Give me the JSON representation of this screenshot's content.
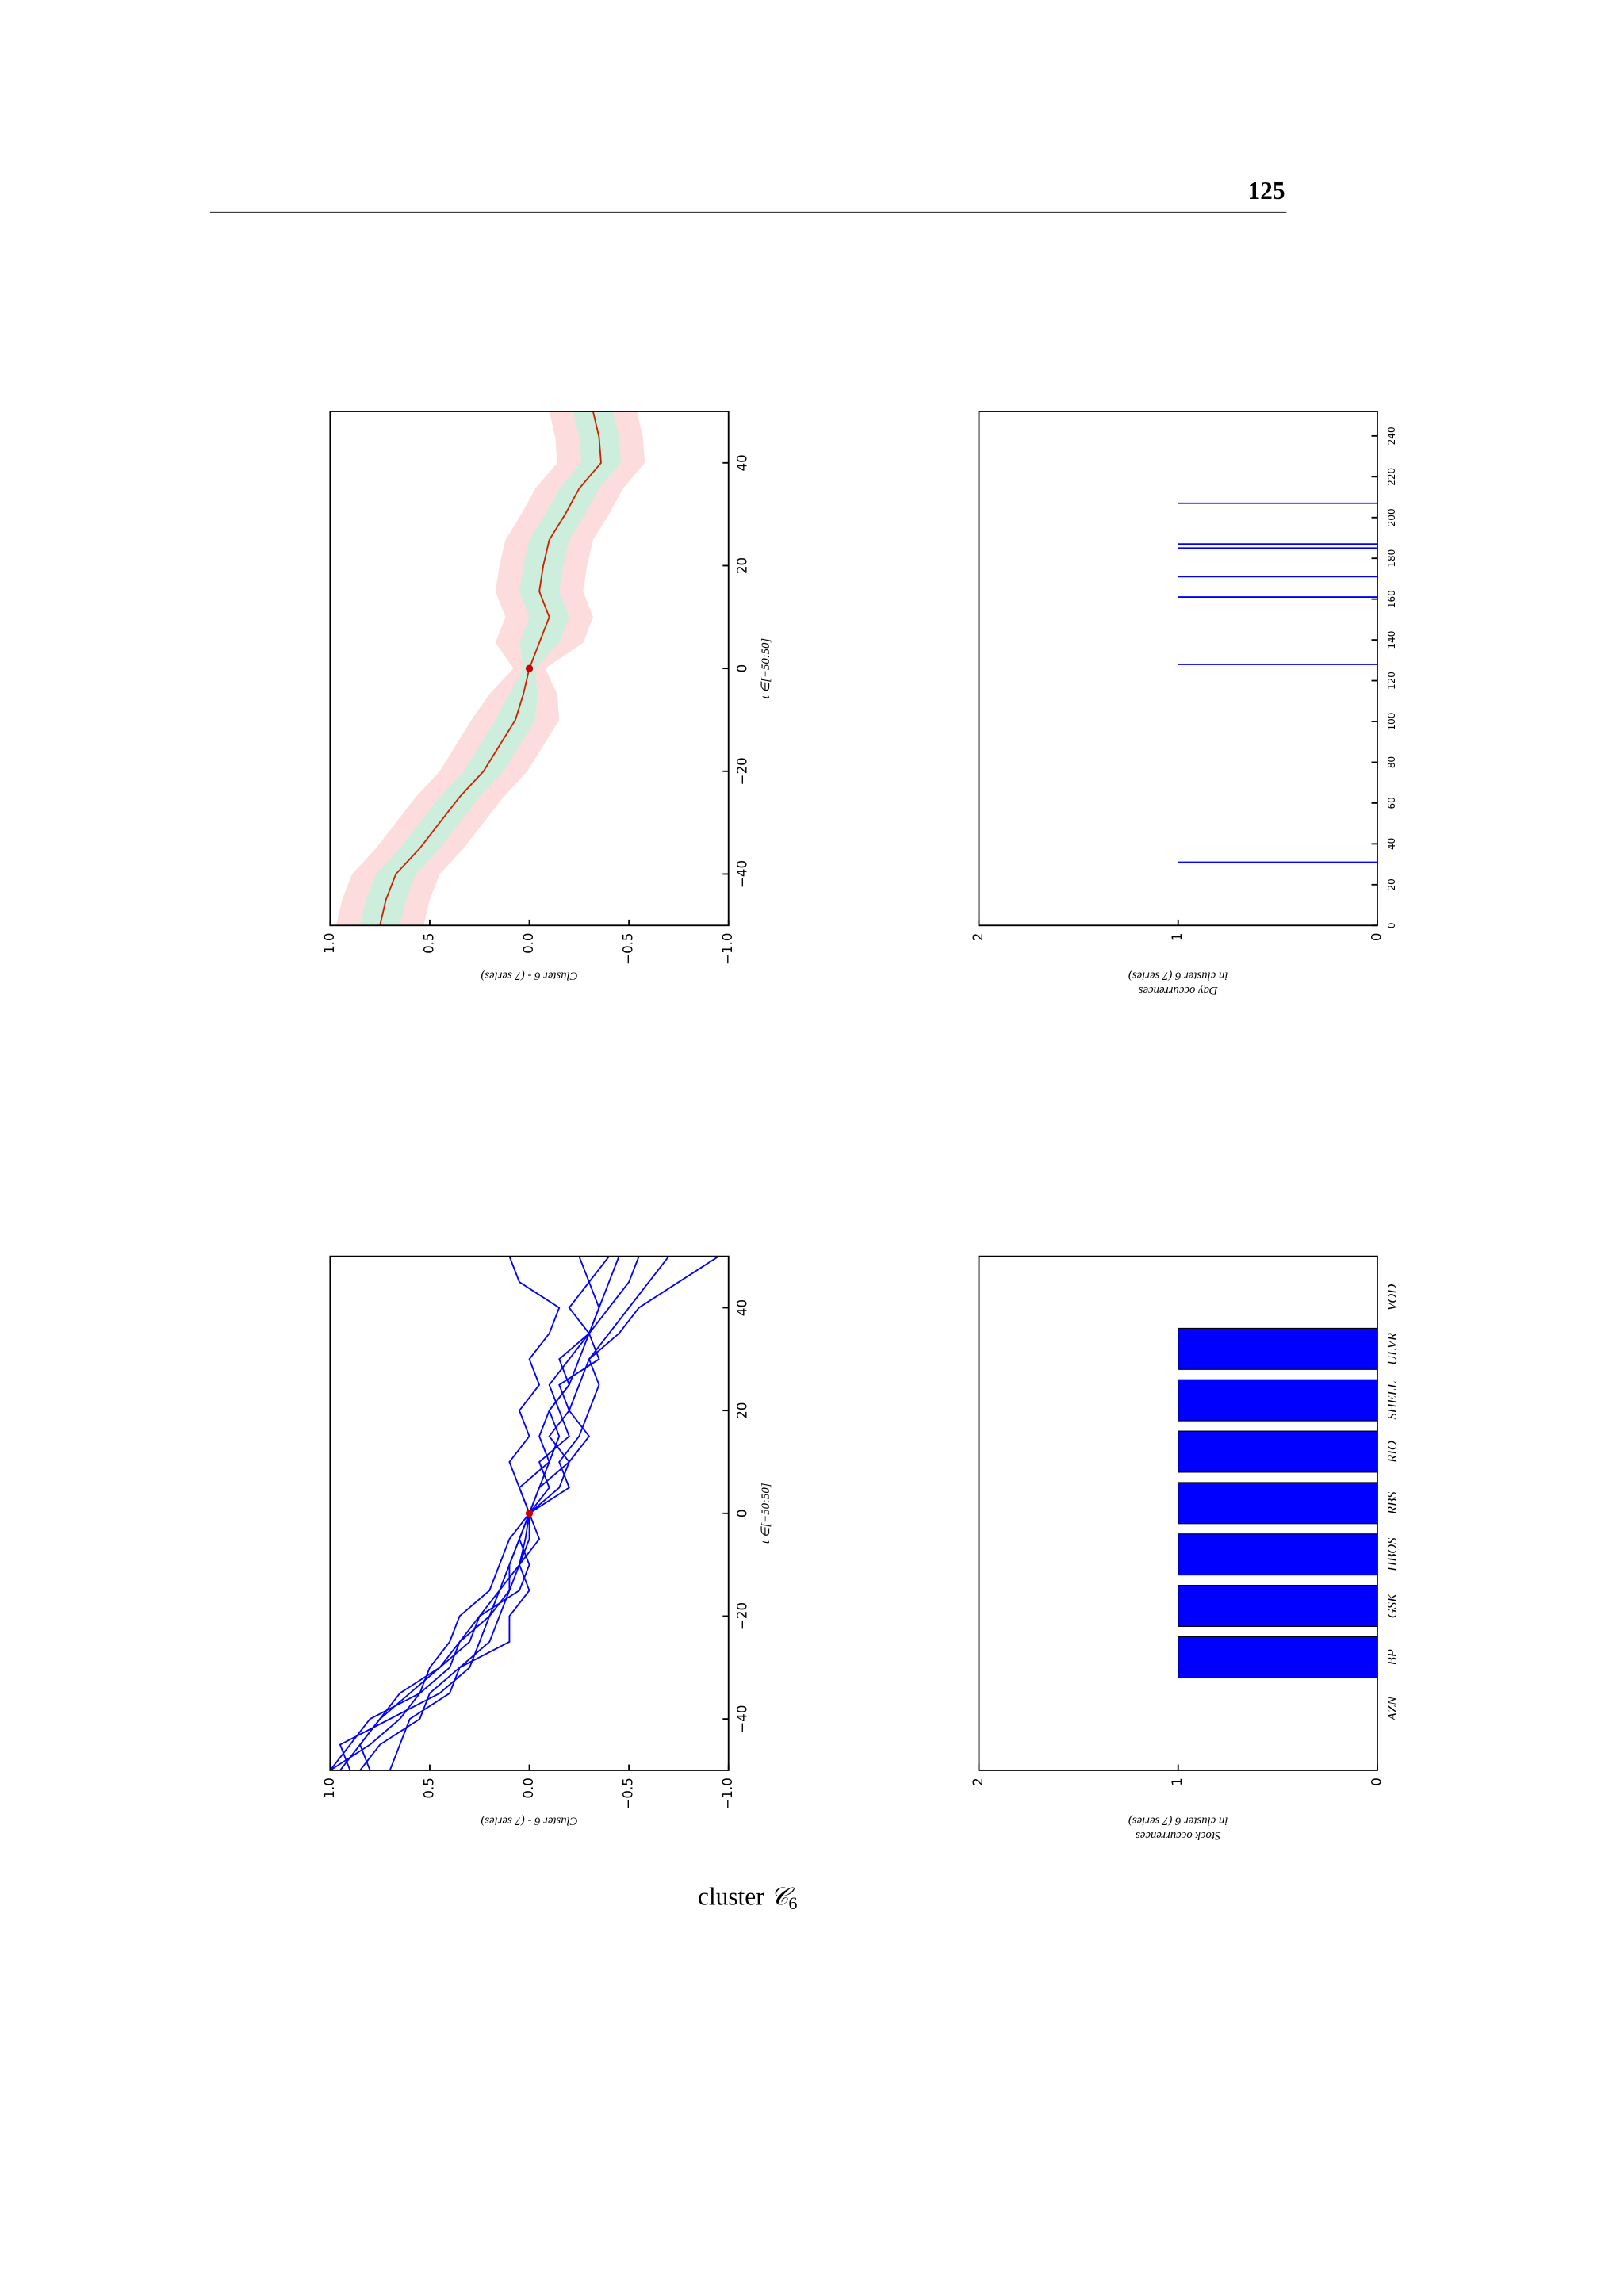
{
  "header": {
    "page_number": "125"
  },
  "caption": {
    "text": "cluster",
    "symbol": "𝒞",
    "subscript": "6"
  },
  "chart_data": [
    {
      "type": "line",
      "x": [
        -50,
        -45,
        -40,
        -35,
        -30,
        -25,
        -20,
        -15,
        -10,
        -5,
        0,
        5,
        10,
        15,
        20,
        25,
        30,
        35,
        40,
        45,
        50
      ],
      "series": [
        {
          "color": "#cc2200",
          "values": [
            0.75,
            0.72,
            0.67,
            0.55,
            0.45,
            0.35,
            0.23,
            0.15,
            0.07,
            0.03,
            0,
            -0.05,
            -0.1,
            -0.05,
            -0.07,
            -0.1,
            -0.18,
            -0.25,
            -0.36,
            -0.35,
            -0.32
          ]
        }
      ],
      "bands": [
        {
          "color": "#fcdcdc",
          "upper": [
            0.97,
            0.94,
            0.89,
            0.77,
            0.67,
            0.57,
            0.45,
            0.37,
            0.29,
            0.2,
            0.08,
            0.17,
            0.12,
            0.17,
            0.15,
            0.12,
            0.04,
            -0.03,
            -0.14,
            -0.13,
            -0.1
          ],
          "lower": [
            0.53,
            0.5,
            0.45,
            0.33,
            0.23,
            0.13,
            0.01,
            -0.07,
            -0.15,
            -0.14,
            -0.08,
            -0.27,
            -0.32,
            -0.27,
            -0.29,
            -0.32,
            -0.4,
            -0.47,
            -0.58,
            -0.57,
            -0.54
          ]
        },
        {
          "color": "#cdeedd",
          "upper": [
            0.85,
            0.82,
            0.77,
            0.65,
            0.55,
            0.45,
            0.33,
            0.25,
            0.17,
            0.1,
            0.03,
            0.05,
            0,
            0.05,
            0.03,
            0,
            -0.08,
            -0.15,
            -0.26,
            -0.25,
            -0.22
          ],
          "lower": [
            0.65,
            0.62,
            0.57,
            0.45,
            0.35,
            0.25,
            0.13,
            0.05,
            -0.03,
            -0.04,
            -0.03,
            -0.15,
            -0.2,
            -0.15,
            -0.17,
            -0.2,
            -0.28,
            -0.35,
            -0.46,
            -0.45,
            -0.42
          ]
        }
      ],
      "points": [
        {
          "x": 0,
          "y": 0,
          "color": "#cc0000"
        }
      ],
      "xlim": [
        -50,
        50
      ],
      "ylim": [
        -1,
        1
      ],
      "xticks": [
        {
          "value": -40,
          "label": "−40"
        },
        {
          "value": -20,
          "label": "−20"
        },
        0,
        20,
        40
      ],
      "yticks": [
        {
          "value": -1,
          "label": "−1.0"
        },
        {
          "value": -0.5,
          "label": "−0.5"
        },
        {
          "value": 0,
          "label": "0.0"
        },
        0.5,
        {
          "value": 1,
          "label": "1.0"
        }
      ],
      "xlabel": "t ∈[−50:50]",
      "ylabel": [
        "Cluster 6 - (7 series)"
      ]
    },
    {
      "type": "stem",
      "x": [
        31,
        128,
        161,
        171,
        185,
        187,
        207
      ],
      "values": [
        1,
        1,
        1,
        1,
        1,
        1,
        1
      ],
      "color": "#0000ff",
      "xlim": [
        0,
        252
      ],
      "ylim": [
        0,
        2
      ],
      "xticks": [
        0,
        20,
        40,
        60,
        80,
        100,
        120,
        140,
        160,
        180,
        200,
        220,
        240
      ],
      "yticks": [
        0,
        1,
        2
      ],
      "ylabel": [
        "Day occurrences",
        "in cluster 6 (7 series)"
      ]
    },
    {
      "type": "line",
      "x": [
        -50,
        -45,
        -40,
        -35,
        -30,
        -25,
        -20,
        -15,
        -10,
        -5,
        0,
        5,
        10,
        15,
        20,
        25,
        30,
        35,
        40,
        45,
        50
      ],
      "series": [
        {
          "color": "#0000ff",
          "values": [
            0.95,
            0.85,
            0.75,
            0.6,
            0.45,
            0.3,
            0.25,
            0.15,
            0.1,
            0.05,
            0,
            -0.05,
            -0.1,
            -0.05,
            -0.1,
            -0.2,
            -0.15,
            -0.3,
            -0.35,
            -0.4,
            -0.45
          ]
        },
        {
          "color": "#0000ff",
          "values": [
            1,
            0.9,
            0.8,
            0.55,
            0.4,
            0.35,
            0.2,
            0.1,
            0.05,
            0.02,
            0,
            0.05,
            -0.1,
            -0.15,
            -0.1,
            -0.2,
            -0.25,
            -0.3,
            -0.2,
            -0.3,
            -0.25
          ]
        },
        {
          "color": "#0000ff",
          "values": [
            0.85,
            0.75,
            0.55,
            0.5,
            0.35,
            0.2,
            0.15,
            0.1,
            0.1,
            0.05,
            0,
            -0.15,
            -0.2,
            -0.1,
            -0.2,
            -0.25,
            -0.3,
            -0.4,
            -0.5,
            -0.6,
            -0.7
          ]
        },
        {
          "color": "#0000ff",
          "values": [
            0.9,
            0.95,
            0.7,
            0.45,
            0.3,
            0.25,
            0.2,
            0.15,
            0.05,
            -0.05,
            0,
            -0.1,
            -0.05,
            -0.2,
            -0.15,
            -0.1,
            -0.2,
            -0.3,
            -0.35,
            -0.3,
            -0.4
          ]
        },
        {
          "color": "#0000ff",
          "values": [
            0.7,
            0.65,
            0.6,
            0.4,
            0.35,
            0.1,
            0.1,
            0,
            0.05,
            0,
            0,
            0.05,
            0.1,
            0,
            0.05,
            -0.05,
            0,
            -0.1,
            -0.15,
            0.05,
            0.1
          ]
        },
        {
          "color": "#0000ff",
          "values": [
            1,
            0.8,
            0.65,
            0.55,
            0.5,
            0.4,
            0.35,
            0.2,
            0.15,
            0.1,
            0,
            -0.2,
            -0.15,
            -0.25,
            -0.3,
            -0.35,
            -0.3,
            -0.45,
            -0.55,
            -0.75,
            -0.95
          ]
        },
        {
          "color": "#0000ff",
          "values": [
            0.8,
            0.85,
            0.75,
            0.65,
            0.45,
            0.35,
            0.25,
            0.05,
            0,
            0.05,
            0,
            -0.05,
            -0.2,
            -0.3,
            -0.2,
            -0.15,
            -0.35,
            -0.3,
            -0.4,
            -0.5,
            -0.55
          ]
        }
      ],
      "points": [
        {
          "x": 0,
          "y": 0,
          "color": "#cc0000"
        }
      ],
      "xlim": [
        -50,
        50
      ],
      "ylim": [
        -1,
        1
      ],
      "xticks": [
        {
          "value": -40,
          "label": "−40"
        },
        {
          "value": -20,
          "label": "−20"
        },
        0,
        20,
        40
      ],
      "yticks": [
        {
          "value": -1,
          "label": "−1.0"
        },
        {
          "value": -0.5,
          "label": "−0.5"
        },
        {
          "value": 0,
          "label": "0.0"
        },
        0.5,
        {
          "value": 1,
          "label": "1.0"
        }
      ],
      "xlabel": "t ∈[−50:50]",
      "ylabel": [
        "Cluster 6 - (7 series)"
      ]
    },
    {
      "type": "bar",
      "categories": [
        "AZN",
        "BP",
        "GSK",
        "HBOS",
        "RBS",
        "RIO",
        "SHELL",
        "ULVR",
        "VOD"
      ],
      "values": [
        0,
        1,
        1,
        1,
        1,
        1,
        1,
        1,
        0
      ],
      "color": "#0000ff",
      "ylim": [
        0,
        2
      ],
      "yticks": [
        0,
        1,
        2
      ],
      "ylabel": [
        "Stock occurrences",
        "in cluster 6 (7 series)"
      ]
    }
  ]
}
